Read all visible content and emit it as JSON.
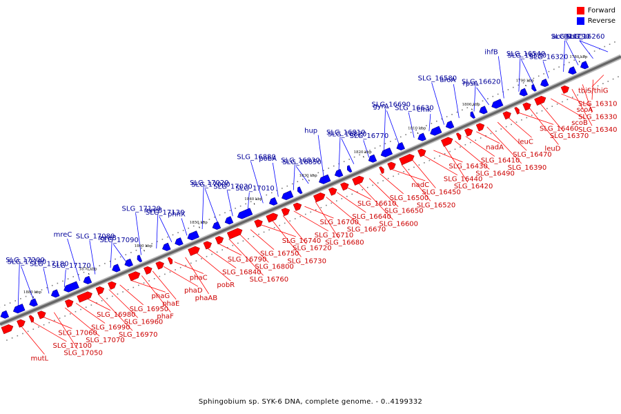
{
  "legend": {
    "forward_label": "Forward",
    "reverse_label": "Reverse",
    "forward_color": "#ff0000",
    "reverse_color": "#0000ff"
  },
  "caption": "Sphingobium sp. SYK-6 DNA, complete genome. - 0..4199332",
  "colors": {
    "forward": "#ff0000",
    "forward_label": "#cc0000",
    "reverse": "#0000ff",
    "reverse_label": "#000099",
    "backbone": "#666666",
    "tick": "#000000"
  },
  "scale_labels": [
    "1780 kbp",
    "1790 kbp",
    "1800 kbp",
    "1810 kbp",
    "1820 kbp",
    "1830 kbp",
    "1840 kbp",
    "1850 kbp",
    "1860 kbp",
    "1870 kbp",
    "1880 kbp"
  ],
  "reverse_gene_labels": [
    "SLG_16260",
    "accC",
    "accB",
    "SLG_16290",
    "SLG_16320",
    "SLG_16530",
    "SLG_16540",
    "ihfB",
    "rpsA",
    "SLG_16620",
    "aroA",
    "SLG_16580",
    "cmk",
    "SLG_16630",
    "gyrA",
    "SLG_16690",
    "SLG_16770",
    "SLG_16820",
    "SLG_16810",
    "hup",
    "SLG_16850",
    "SLG_16830",
    "pobA",
    "SLG_16880",
    "SLG_17010",
    "SLG_17030",
    "SLG_17000",
    "SLG_17020",
    "phnX",
    "SLG_17130",
    "mreB",
    "SLG_17120",
    "SLG_17090",
    "mrdB",
    "SLG_17080",
    "mreC",
    "SLG_17170",
    "SLG_17180",
    "SLG_17190",
    "SLG_17200"
  ],
  "forward_gene_labels": [
    "thiS/thiG",
    "SLG_16310",
    "SLG_16330",
    "SLG_16340",
    "scoA",
    "scoB",
    "SLG_16370",
    "leuD",
    "SLG_16460",
    "leuC",
    "SLG_16470",
    "SLG_16390",
    "nadA",
    "SLG_16410",
    "SLG_16490",
    "SLG_16420",
    "SLG_16430",
    "SLG_16440",
    "SLG_16450",
    "SLG_16520",
    "nadC",
    "SLG_16500",
    "SLG_16650",
    "SLG_16600",
    "SLG_16610",
    "SLG_16640",
    "SLG_16670",
    "SLG_16680",
    "SLG_16700",
    "SLG_16710",
    "SLG_16720",
    "SLG_16730",
    "SLG_16740",
    "SLG_16750",
    "SLG_16800",
    "SLG_16760",
    "SLG_16790",
    "SLG_16840",
    "pobR",
    "phaAB",
    "phaC",
    "phaD",
    "phaE",
    "phaF",
    "phaG",
    "SLG_16950",
    "SLG_16960",
    "SLG_16970",
    "SLG_16980",
    "SLG_16990",
    "SLG_17070",
    "SLG_17050",
    "SLG_17060",
    "SLG_17100",
    "mutL"
  ]
}
